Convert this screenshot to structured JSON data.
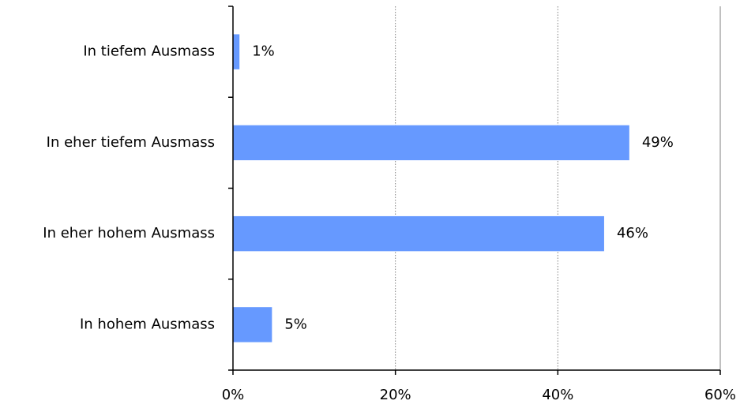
{
  "chart_data": {
    "type": "bar",
    "orientation": "horizontal",
    "categories": [
      "In tiefem Ausmass",
      "In eher tiefem Ausmass",
      "In eher hohem Ausmass",
      "In hohem Ausmass"
    ],
    "values": [
      0.8,
      48.8,
      45.7,
      4.8
    ],
    "data_labels": [
      "1%",
      "49%",
      "46%",
      "5%"
    ],
    "xlim": [
      0,
      60
    ],
    "x_ticks": [
      0,
      20,
      40,
      60
    ],
    "x_tick_labels": [
      "0%",
      "20%",
      "40%",
      "60%"
    ],
    "grid": "vertical dotted",
    "bar_color": "#6699ff",
    "grid_color": "#808080",
    "axis_color": "#000000"
  }
}
